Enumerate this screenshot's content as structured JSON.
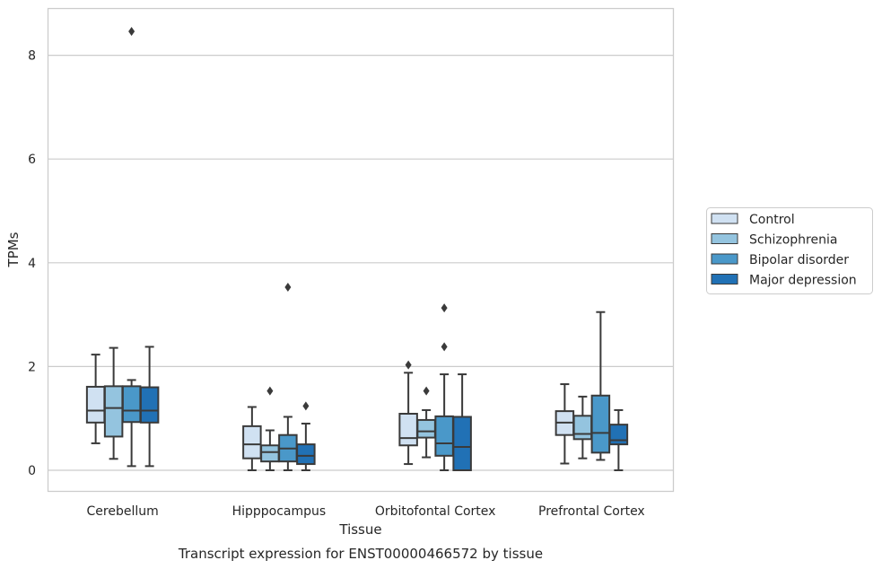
{
  "caption": "Transcript expression for ENST00000466572 by tissue",
  "chart_data": {
    "type": "boxplot",
    "xlabel": "Tissue",
    "ylabel": "TPMs",
    "ylim": [
      -0.4,
      8.9
    ],
    "yticks": [
      0,
      2,
      4,
      6,
      8
    ],
    "grid": "horizontal",
    "legend_position": "right",
    "categories": [
      "Cerebellum",
      "Hipppocampus",
      "Orbitofontal Cortex",
      "Prefrontal Cortex"
    ],
    "series": [
      {
        "name": "Control",
        "color": "#d0e1f2",
        "boxes": [
          {
            "whislo": 0.52,
            "q1": 0.92,
            "med": 1.15,
            "q3": 1.61,
            "whishi": 2.23,
            "fliers": []
          },
          {
            "whislo": 0.0,
            "q1": 0.23,
            "med": 0.5,
            "q3": 0.85,
            "whishi": 1.22,
            "fliers": []
          },
          {
            "whislo": 0.12,
            "q1": 0.48,
            "med": 0.62,
            "q3": 1.09,
            "whishi": 1.88,
            "fliers": [
              2.03
            ]
          },
          {
            "whislo": 0.13,
            "q1": 0.68,
            "med": 0.92,
            "q3": 1.14,
            "whishi": 1.66,
            "fliers": []
          }
        ]
      },
      {
        "name": "Schizophrenia",
        "color": "#94c4df",
        "boxes": [
          {
            "whislo": 0.22,
            "q1": 0.65,
            "med": 1.2,
            "q3": 1.62,
            "whishi": 2.36,
            "fliers": []
          },
          {
            "whislo": 0.0,
            "q1": 0.17,
            "med": 0.35,
            "q3": 0.48,
            "whishi": 0.77,
            "fliers": [
              1.53
            ]
          },
          {
            "whislo": 0.25,
            "q1": 0.63,
            "med": 0.75,
            "q3": 0.97,
            "whishi": 1.16,
            "fliers": [
              1.53
            ]
          },
          {
            "whislo": 0.23,
            "q1": 0.6,
            "med": 0.7,
            "q3": 1.05,
            "whishi": 1.42,
            "fliers": []
          }
        ]
      },
      {
        "name": "Bipolar disorder",
        "color": "#4a98c9",
        "boxes": [
          {
            "whislo": 0.08,
            "q1": 0.93,
            "med": 1.15,
            "q3": 1.62,
            "whishi": 1.74,
            "fliers": [
              8.46
            ]
          },
          {
            "whislo": 0.0,
            "q1": 0.17,
            "med": 0.42,
            "q3": 0.68,
            "whishi": 1.03,
            "fliers": [
              3.53
            ]
          },
          {
            "whislo": 0.0,
            "q1": 0.28,
            "med": 0.52,
            "q3": 1.04,
            "whishi": 1.85,
            "fliers": [
              2.38,
              3.13
            ]
          },
          {
            "whislo": 0.2,
            "q1": 0.34,
            "med": 0.72,
            "q3": 1.44,
            "whishi": 3.05,
            "fliers": []
          }
        ]
      },
      {
        "name": "Major depression",
        "color": "#2171b5",
        "boxes": [
          {
            "whislo": 0.08,
            "q1": 0.92,
            "med": 1.15,
            "q3": 1.6,
            "whishi": 2.38,
            "fliers": []
          },
          {
            "whislo": 0.0,
            "q1": 0.12,
            "med": 0.28,
            "q3": 0.5,
            "whishi": 0.9,
            "fliers": [
              1.24
            ]
          },
          {
            "whislo": 0.0,
            "q1": 0.0,
            "med": 0.45,
            "q3": 1.03,
            "whishi": 1.85,
            "fliers": []
          },
          {
            "whislo": 0.0,
            "q1": 0.5,
            "med": 0.58,
            "q3": 0.88,
            "whishi": 1.16,
            "fliers": []
          }
        ]
      }
    ]
  }
}
